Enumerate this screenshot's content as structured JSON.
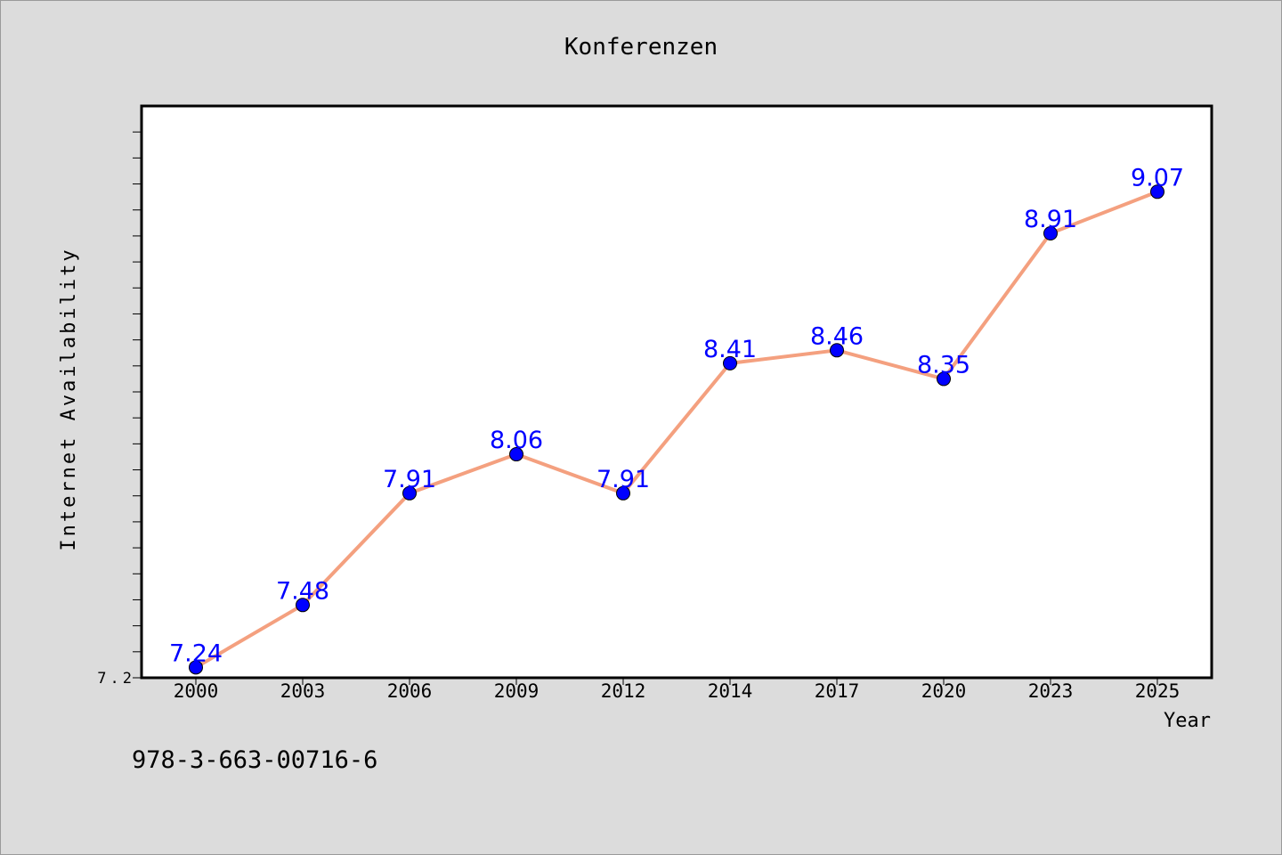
{
  "chart_data": {
    "type": "line",
    "title": "Konferenzen",
    "xlabel": "Year",
    "ylabel": "Internet Availability",
    "categories": [
      "2000",
      "2003",
      "2006",
      "2009",
      "2012",
      "2014",
      "2017",
      "2020",
      "2023",
      "2025"
    ],
    "series": [
      {
        "values": [
          7.24,
          7.48,
          7.91,
          8.06,
          7.91,
          8.41,
          8.46,
          8.35,
          8.91,
          9.07
        ],
        "labels": [
          "7.24",
          "7.48",
          "7.91",
          "8.06",
          "7.91",
          "8.41",
          "8.46",
          "8.35",
          "8.91",
          "9.07"
        ],
        "line_color": "#f4a07f",
        "marker_color": "#0000ff",
        "label_color": "#0000ff"
      }
    ],
    "ylim": [
      7.2,
      9.4
    ],
    "yticks_labeled": [
      "7.2"
    ],
    "grid": false,
    "legend": "none"
  },
  "footer": {
    "isbn": "978-3-663-00716-6"
  }
}
